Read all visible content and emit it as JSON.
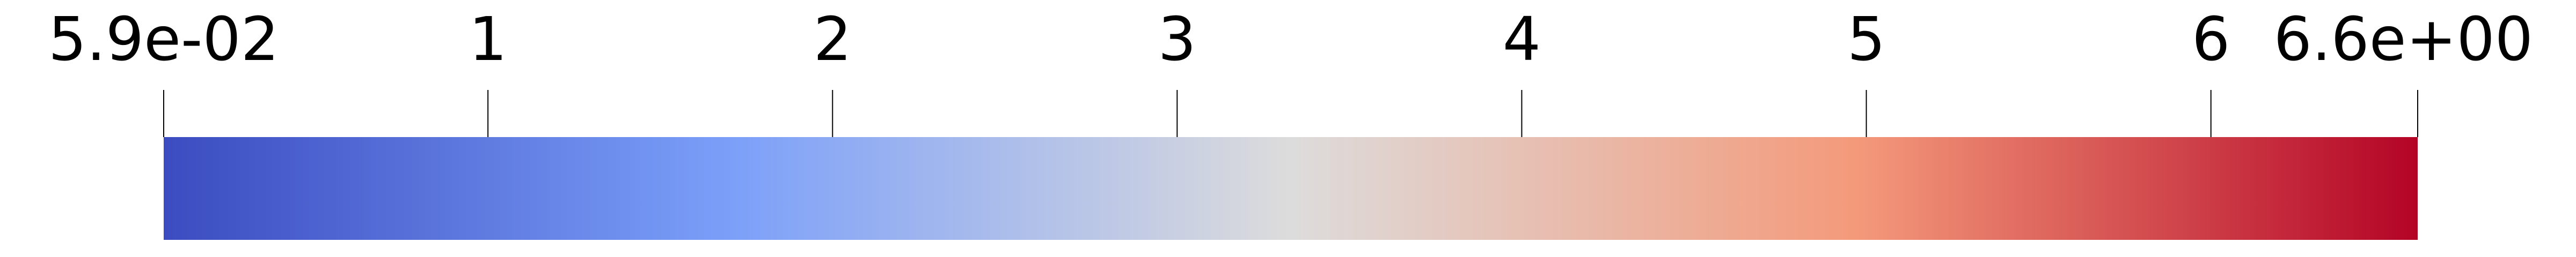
{
  "chart_data": {
    "type": "colorbar",
    "orientation": "horizontal",
    "colormap": "coolwarm",
    "range": [
      0.059,
      6.6
    ],
    "min_label": "5.9e-02",
    "max_label": "6.6e+00",
    "ticks": [
      {
        "value": 0.059,
        "label": "5.9e-02"
      },
      {
        "value": 1,
        "label": "1"
      },
      {
        "value": 2,
        "label": "2"
      },
      {
        "value": 3,
        "label": "3"
      },
      {
        "value": 4,
        "label": "4"
      },
      {
        "value": 5,
        "label": "5"
      },
      {
        "value": 6,
        "label": "6"
      },
      {
        "value": 6.6,
        "label": "6.6e+00"
      }
    ],
    "color_stops": [
      {
        "fraction": 0.0,
        "color": "#3b4cc0"
      },
      {
        "fraction": 0.25,
        "color": "#7b9ff9"
      },
      {
        "fraction": 0.5,
        "color": "#dddcdc"
      },
      {
        "fraction": 0.75,
        "color": "#f49a7b"
      },
      {
        "fraction": 1.0,
        "color": "#b40426"
      }
    ]
  }
}
